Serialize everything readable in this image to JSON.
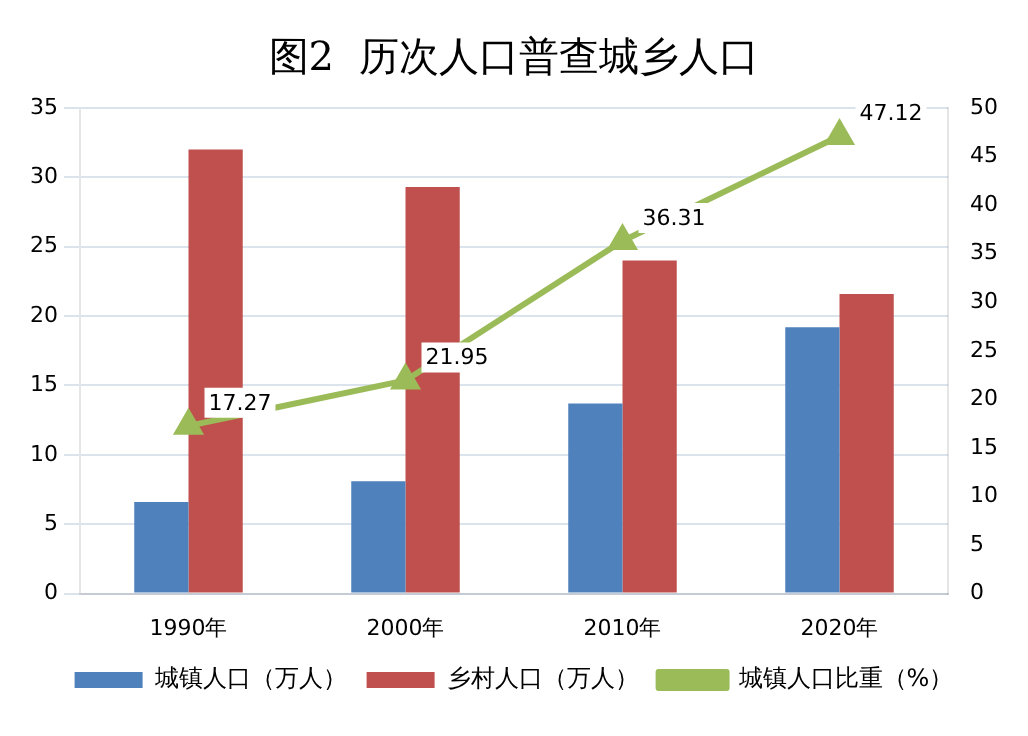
{
  "chart_data": {
    "type": "bar",
    "title": "图2  历次人口普查城乡人口",
    "categories": [
      "1990年",
      "2000年",
      "2010年",
      "2020年"
    ],
    "series": [
      {
        "name": "城镇人口（万人）",
        "color": "#4f81bd",
        "values": [
          6.6,
          8.1,
          13.7,
          19.2
        ]
      },
      {
        "name": "乡村人口（万人）",
        "color": "#c0504d",
        "values": [
          32.0,
          29.3,
          24.0,
          21.6
        ]
      },
      {
        "name": "城镇人口比重（%）",
        "type": "line",
        "axis": "y2",
        "color": "#9bbb59",
        "marker": "triangle",
        "values": [
          17.27,
          21.95,
          36.31,
          47.12
        ],
        "value_labels": [
          "17.27",
          "21.95",
          "36.31",
          "47.12"
        ]
      }
    ],
    "ylim": [
      0,
      35
    ],
    "yticks": [
      0,
      5,
      10,
      15,
      20,
      25,
      30,
      35
    ],
    "y2lim": [
      0,
      50
    ],
    "y2ticks": [
      0,
      5,
      10,
      15,
      20,
      25,
      30,
      35,
      40,
      45,
      50
    ],
    "grid": "y",
    "legend": "bottom"
  }
}
